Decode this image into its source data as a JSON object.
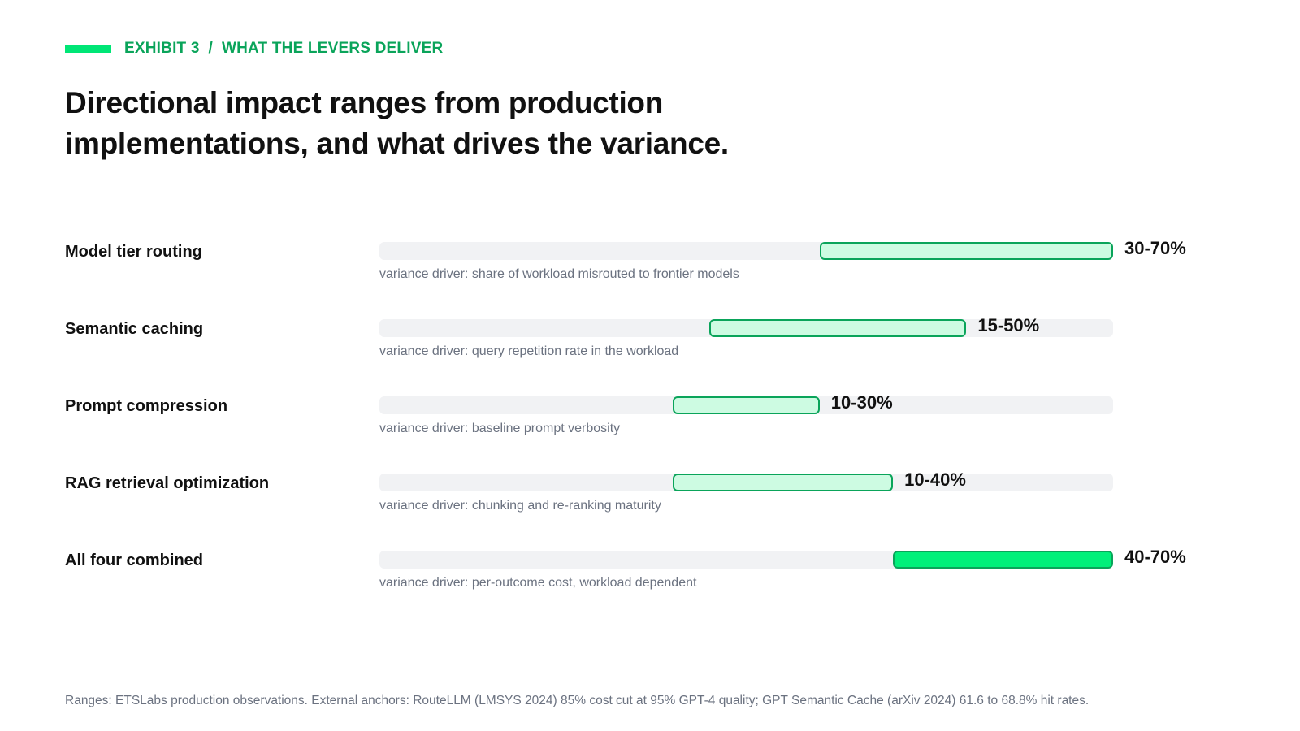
{
  "header": {
    "eyebrow": "EXHIBIT 3  /  WHAT THE LEVERS DELIVER",
    "title": "Directional impact ranges from production implementations, and what drives the variance."
  },
  "chart_data": {
    "type": "range_bar",
    "x_scale": [
      -30,
      70
    ],
    "unit": "%",
    "rows": [
      {
        "label": "Model tier routing",
        "low": 30,
        "high": 70,
        "range_label": "30-70%",
        "driver": "variance driver: share of workload misrouted to frontier models",
        "highlight": false
      },
      {
        "label": "Semantic caching",
        "low": 15,
        "high": 50,
        "range_label": "15-50%",
        "driver": "variance driver: query repetition rate in the workload",
        "highlight": false
      },
      {
        "label": "Prompt compression",
        "low": 10,
        "high": 30,
        "range_label": "10-30%",
        "driver": "variance driver: baseline prompt verbosity",
        "highlight": false
      },
      {
        "label": "RAG retrieval optimization",
        "low": 10,
        "high": 40,
        "range_label": "10-40%",
        "driver": "variance driver: chunking and re-ranking maturity",
        "highlight": false
      },
      {
        "label": "All four combined",
        "low": 40,
        "high": 70,
        "range_label": "40-70%",
        "driver": "variance driver: per-outcome cost, workload dependent",
        "highlight": true
      }
    ]
  },
  "colors": {
    "accent": "#00e676",
    "accent_text": "#0aa45a",
    "bar_fill": "#cdfbe2",
    "bar_fill_combined": "#00f07a",
    "bar_border": "#0aa45a",
    "track": "#f1f2f4"
  },
  "footnote": "Ranges: ETSLabs production observations. External anchors: RouteLLM (LMSYS 2024) 85% cost cut at 95% GPT-4 quality; GPT Semantic Cache (arXiv 2024) 61.6 to 68.8% hit rates."
}
